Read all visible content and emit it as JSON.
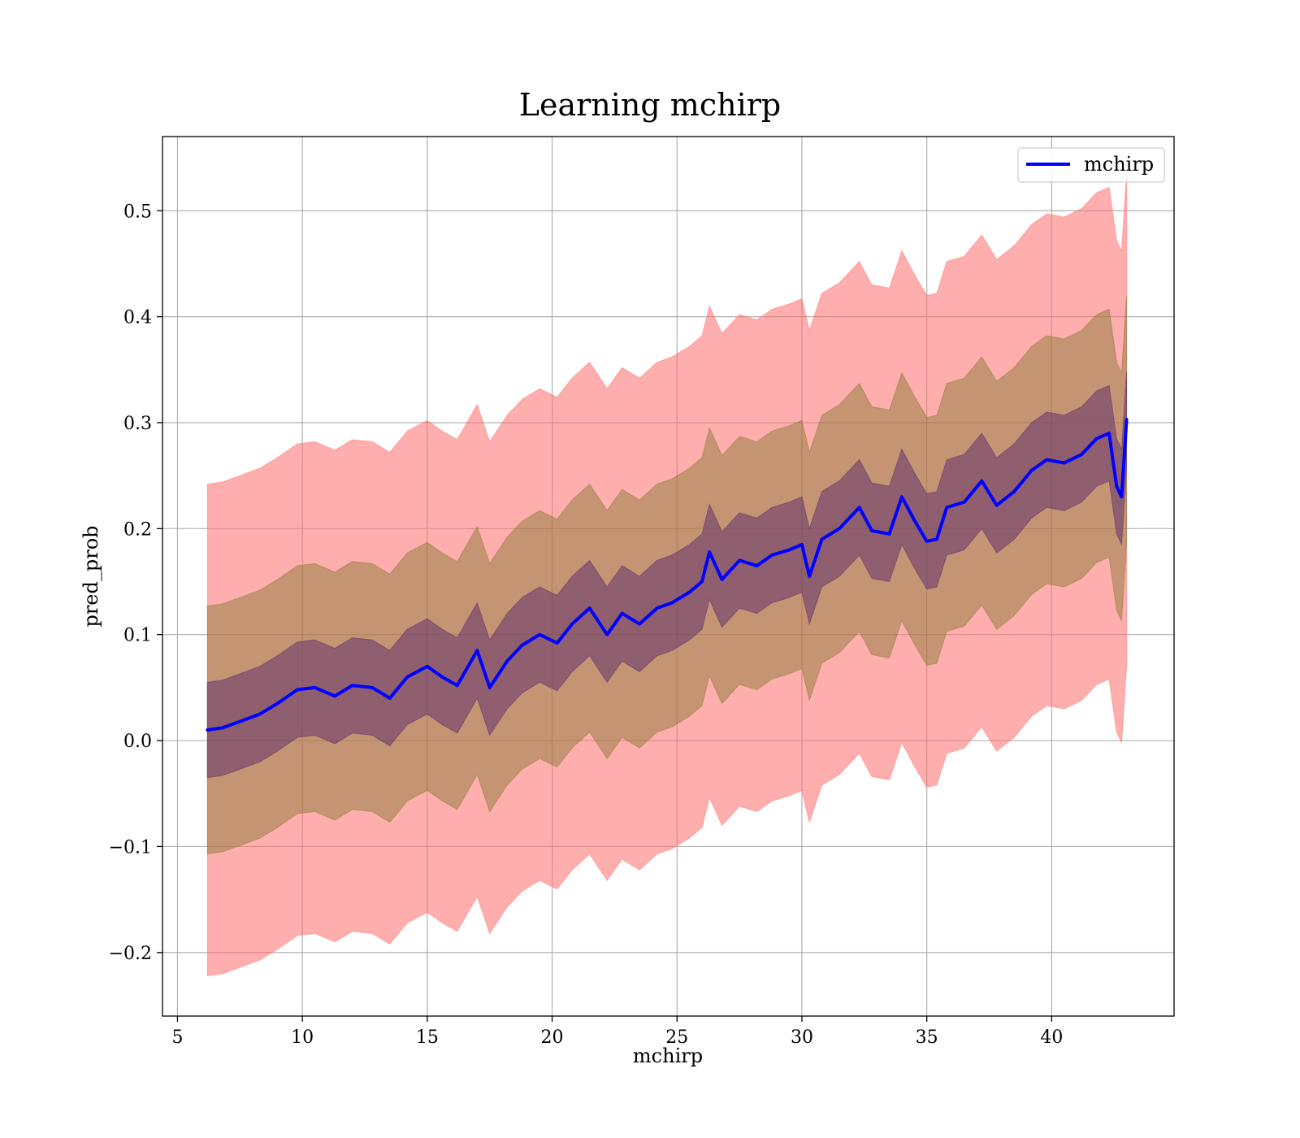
{
  "chart_data": {
    "type": "line",
    "title": "Learning mchirp",
    "xlabel": "mchirp",
    "ylabel": "pred_prob",
    "xlim": [
      4.4,
      44.9
    ],
    "ylim": [
      -0.26,
      0.57
    ],
    "xticks": [
      5,
      10,
      15,
      20,
      25,
      30,
      35,
      40
    ],
    "xtick_labels": [
      "5",
      "10",
      "15",
      "20",
      "25",
      "30",
      "35",
      "40"
    ],
    "yticks": [
      -0.2,
      -0.1,
      0.0,
      0.1,
      0.2,
      0.3,
      0.4,
      0.5
    ],
    "ytick_labels": [
      "−0.2",
      "−0.1",
      "0.0",
      "0.1",
      "0.2",
      "0.3",
      "0.4",
      "0.5"
    ],
    "grid": true,
    "legend_position": "top-right",
    "colors": {
      "line": "#0000ff",
      "band_outer": "#ff6b6b",
      "band_mid": "#8c7a36",
      "band_inner": "#5a2a6e",
      "grid": "#b0b0b0"
    },
    "series": [
      {
        "name": "mchirp",
        "x": [
          6.2,
          6.8,
          7.5,
          8.3,
          9.0,
          9.8,
          10.5,
          11.3,
          12.0,
          12.8,
          13.5,
          14.2,
          15.0,
          15.6,
          16.2,
          17.0,
          17.5,
          18.2,
          18.8,
          19.5,
          20.2,
          20.8,
          21.5,
          22.2,
          22.8,
          23.5,
          24.2,
          24.8,
          25.5,
          26.0,
          26.3,
          26.8,
          27.5,
          28.2,
          28.8,
          29.5,
          30.0,
          30.3,
          30.8,
          31.5,
          32.3,
          32.8,
          33.5,
          34.0,
          34.5,
          35.0,
          35.4,
          35.8,
          36.5,
          37.2,
          37.8,
          38.5,
          39.2,
          39.8,
          40.5,
          41.2,
          41.8,
          42.3,
          42.6,
          42.8,
          43.0
        ],
        "y": [
          0.01,
          0.012,
          0.018,
          0.025,
          0.035,
          0.048,
          0.05,
          0.042,
          0.052,
          0.05,
          0.04,
          0.06,
          0.07,
          0.06,
          0.052,
          0.085,
          0.05,
          0.075,
          0.09,
          0.1,
          0.092,
          0.11,
          0.125,
          0.1,
          0.12,
          0.11,
          0.125,
          0.13,
          0.14,
          0.15,
          0.178,
          0.152,
          0.17,
          0.165,
          0.175,
          0.18,
          0.185,
          0.155,
          0.19,
          0.2,
          0.22,
          0.198,
          0.195,
          0.23,
          0.208,
          0.188,
          0.19,
          0.22,
          0.225,
          0.245,
          0.222,
          0.235,
          0.255,
          0.265,
          0.262,
          0.27,
          0.285,
          0.29,
          0.24,
          0.23,
          0.303
        ]
      }
    ],
    "bands": {
      "inner_halfwidth": 0.045,
      "mid_halfwidth": 0.117,
      "outer_halfwidth": 0.232
    }
  }
}
